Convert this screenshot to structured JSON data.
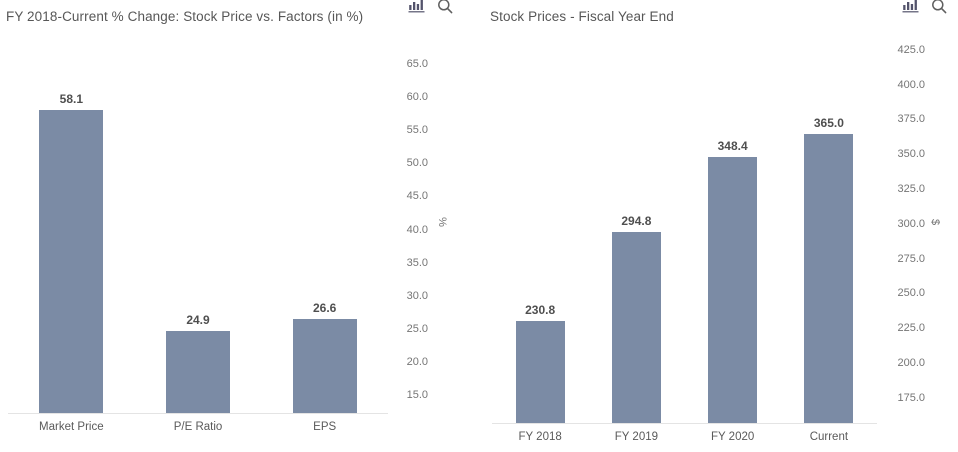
{
  "colors": {
    "background": "#ffffff",
    "bar": "#7b8ba5",
    "title_text": "#575757",
    "tick_text": "#757575",
    "data_label_text": "#4f4f4f",
    "category_text": "#5a5a5a",
    "axis_line": "#e4e4e4",
    "chart_icon": "#53536b",
    "magnifier_icon": "#5f5f5f"
  },
  "chart_data": [
    {
      "type": "bar",
      "title": "FY 2018-Current % Change: Stock Price vs. Factors (in %)",
      "categories": [
        "Market Price",
        "P/E Ratio",
        "EPS"
      ],
      "values": [
        58.1,
        24.9,
        26.6
      ],
      "data_labels": [
        "58.1",
        "24.9",
        "26.6"
      ],
      "xlabel": "",
      "ylabel": "%",
      "yticks": [
        65.0,
        60.0,
        55.0,
        50.0,
        45.0,
        40.0,
        35.0,
        30.0,
        25.0,
        20.0,
        15.0
      ],
      "ytick_labels": [
        "65.0",
        "60.0",
        "55.0",
        "50.0",
        "45.0",
        "40.0",
        "35.0",
        "30.0",
        "25.0",
        "20.0",
        "15.0"
      ],
      "ylim": [
        12.5,
        67.5
      ],
      "grid": false,
      "legend": "none",
      "axis_side": "right",
      "bar_color": "#7b8ba5",
      "toolbar_icons": [
        "bar-chart",
        "magnifier"
      ]
    },
    {
      "type": "bar",
      "title": "Stock Prices - Fiscal Year End",
      "categories": [
        "FY 2018",
        "FY 2019",
        "FY 2020",
        "Current"
      ],
      "values": [
        230.8,
        294.8,
        348.4,
        365.0
      ],
      "data_labels": [
        "230.8",
        "294.8",
        "348.4",
        "365.0"
      ],
      "xlabel": "",
      "ylabel": "$",
      "yticks": [
        425.0,
        400.0,
        375.0,
        350.0,
        325.0,
        300.0,
        275.0,
        250.0,
        225.0,
        200.0,
        175.0
      ],
      "ytick_labels": [
        "425.0",
        "400.0",
        "375.0",
        "350.0",
        "325.0",
        "300.0",
        "275.0",
        "250.0",
        "225.0",
        "200.0",
        "175.0"
      ],
      "ylim": [
        157.5,
        435.0
      ],
      "grid": false,
      "legend": "none",
      "axis_side": "right",
      "bar_color": "#7b8ba5",
      "toolbar_icons": [
        "bar-chart",
        "magnifier"
      ]
    }
  ]
}
